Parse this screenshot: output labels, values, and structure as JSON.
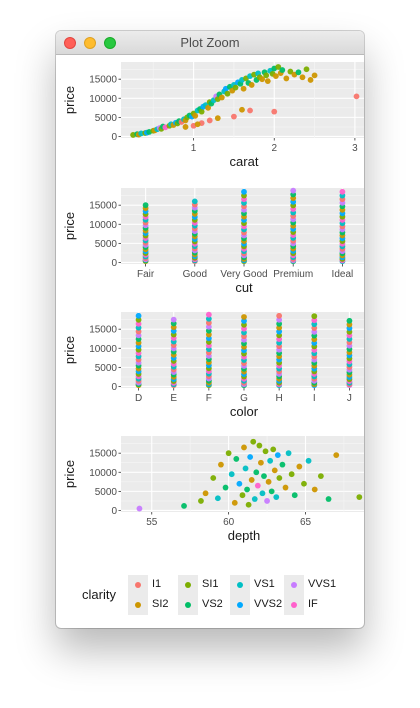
{
  "window": {
    "title": "Plot Zoom"
  },
  "legend": {
    "title": "clarity",
    "items": [
      {
        "label": "I1",
        "color": "#F8766D"
      },
      {
        "label": "SI2",
        "color": "#CD9600"
      },
      {
        "label": "SI1",
        "color": "#7CAE00"
      },
      {
        "label": "VS2",
        "color": "#00BE67"
      },
      {
        "label": "VS1",
        "color": "#00BFC4"
      },
      {
        "label": "VVS2",
        "color": "#00A9FF"
      },
      {
        "label": "VVS1",
        "color": "#C77CFF"
      },
      {
        "label": "IF",
        "color": "#FF61CC"
      }
    ]
  },
  "chart_data": [
    {
      "type": "scatter",
      "xlabel": "carat",
      "ylabel": "price",
      "xlim": [
        0.1,
        3.15
      ],
      "ylim": [
        -400,
        19500
      ],
      "xticks": [
        1,
        2,
        3
      ],
      "yticks": [
        0,
        5000,
        10000,
        15000
      ],
      "grid": true,
      "points": [
        [
          0.25,
          400,
          "SI1"
        ],
        [
          0.3,
          600,
          "VS2"
        ],
        [
          0.32,
          500,
          "SI2"
        ],
        [
          0.35,
          800,
          "VS1"
        ],
        [
          0.4,
          900,
          "SI1"
        ],
        [
          0.42,
          1000,
          "VVS2"
        ],
        [
          0.45,
          1200,
          "VS2"
        ],
        [
          0.5,
          1500,
          "SI1"
        ],
        [
          0.52,
          1600,
          "SI2"
        ],
        [
          0.55,
          1900,
          "VS1"
        ],
        [
          0.58,
          2200,
          "VVS1"
        ],
        [
          0.6,
          2000,
          "SI1"
        ],
        [
          0.62,
          2600,
          "VS2"
        ],
        [
          0.65,
          2400,
          "IF"
        ],
        [
          0.7,
          2800,
          "SI1"
        ],
        [
          0.72,
          3200,
          "VS1"
        ],
        [
          0.75,
          3000,
          "SI2"
        ],
        [
          0.78,
          3600,
          "VVS2"
        ],
        [
          0.8,
          3400,
          "SI1"
        ],
        [
          0.82,
          4000,
          "VS2"
        ],
        [
          0.85,
          3800,
          "I1"
        ],
        [
          0.88,
          4500,
          "VS1"
        ],
        [
          0.9,
          4200,
          "SI2"
        ],
        [
          0.92,
          5000,
          "SI1"
        ],
        [
          0.95,
          5500,
          "VS2"
        ],
        [
          0.98,
          5200,
          "VVS2"
        ],
        [
          1.0,
          6000,
          "SI1"
        ],
        [
          1.02,
          5400,
          "SI2"
        ],
        [
          1.05,
          6800,
          "VS1"
        ],
        [
          1.08,
          7200,
          "VS2"
        ],
        [
          1.1,
          6500,
          "SI1"
        ],
        [
          1.12,
          7800,
          "VVS2"
        ],
        [
          1.15,
          8200,
          "VS1"
        ],
        [
          1.18,
          7500,
          "SI2"
        ],
        [
          1.2,
          9000,
          "SI1"
        ],
        [
          1.22,
          8600,
          "VS2"
        ],
        [
          1.25,
          9500,
          "VS1"
        ],
        [
          1.28,
          10500,
          "VVS1"
        ],
        [
          1.3,
          9800,
          "SI1"
        ],
        [
          1.32,
          11000,
          "VS2"
        ],
        [
          1.35,
          10200,
          "SI2"
        ],
        [
          1.38,
          11800,
          "VS1"
        ],
        [
          1.4,
          12500,
          "VVS2"
        ],
        [
          1.42,
          11200,
          "SI1"
        ],
        [
          1.45,
          13000,
          "VS2"
        ],
        [
          1.48,
          12000,
          "SI2"
        ],
        [
          1.5,
          13500,
          "VS1"
        ],
        [
          1.52,
          12800,
          "SI1"
        ],
        [
          1.55,
          14200,
          "VVS2"
        ],
        [
          1.58,
          13800,
          "VS2"
        ],
        [
          1.6,
          14800,
          "VS1"
        ],
        [
          1.62,
          12500,
          "SI2"
        ],
        [
          1.65,
          15200,
          "SI1"
        ],
        [
          1.68,
          14000,
          "VS2"
        ],
        [
          1.7,
          15800,
          "VS1"
        ],
        [
          1.72,
          13500,
          "SI2"
        ],
        [
          1.75,
          16200,
          "SI1"
        ],
        [
          1.78,
          14800,
          "VS2"
        ],
        [
          1.8,
          16500,
          "VS1"
        ],
        [
          1.82,
          15500,
          "SI1"
        ],
        [
          1.85,
          15000,
          "SI2"
        ],
        [
          1.88,
          16800,
          "VS2"
        ],
        [
          1.9,
          16000,
          "SI1"
        ],
        [
          1.92,
          14500,
          "SI2"
        ],
        [
          1.95,
          17200,
          "VS1"
        ],
        [
          1.98,
          16400,
          "SI1"
        ],
        [
          2.0,
          17800,
          "VS2"
        ],
        [
          2.02,
          15800,
          "SI2"
        ],
        [
          2.05,
          18200,
          "SI1"
        ],
        [
          2.08,
          16600,
          "SI2"
        ],
        [
          2.1,
          17400,
          "VS2"
        ],
        [
          2.15,
          15200,
          "SI2"
        ],
        [
          2.2,
          17000,
          "SI1"
        ],
        [
          2.25,
          16200,
          "SI2"
        ],
        [
          2.3,
          16800,
          "VS2"
        ],
        [
          2.35,
          15500,
          "SI2"
        ],
        [
          2.4,
          17600,
          "SI1"
        ],
        [
          2.45,
          14800,
          "SI2"
        ],
        [
          2.5,
          16000,
          "SI2"
        ],
        [
          1.0,
          2800,
          "I1"
        ],
        [
          1.1,
          3500,
          "I1"
        ],
        [
          1.2,
          4200,
          "I1"
        ],
        [
          1.5,
          5200,
          "I1"
        ],
        [
          1.7,
          6800,
          "I1"
        ],
        [
          2.0,
          6500,
          "I1"
        ],
        [
          0.9,
          2500,
          "SI2"
        ],
        [
          1.05,
          3200,
          "SI2"
        ],
        [
          1.3,
          4800,
          "SI2"
        ],
        [
          1.6,
          7000,
          "SI2"
        ],
        [
          3.02,
          10500,
          "I1"
        ]
      ]
    },
    {
      "type": "scatter",
      "xlabel": "cut",
      "ylabel": "price",
      "categories": [
        "Fair",
        "Good",
        "Very Good",
        "Premium",
        "Ideal"
      ],
      "ylim": [
        -400,
        19500
      ],
      "yticks": [
        0,
        5000,
        10000,
        15000
      ],
      "grid": true,
      "column_max": [
        15000,
        16000,
        18500,
        18800,
        18500
      ],
      "points_per_column": 26
    },
    {
      "type": "scatter",
      "xlabel": "color",
      "ylabel": "price",
      "categories": [
        "D",
        "E",
        "F",
        "G",
        "H",
        "I",
        "J"
      ],
      "ylim": [
        -400,
        19500
      ],
      "yticks": [
        0,
        5000,
        10000,
        15000
      ],
      "grid": true,
      "column_max": [
        18500,
        17500,
        18800,
        18200,
        18500,
        18400,
        17200
      ],
      "points_per_column": 24
    },
    {
      "type": "scatter",
      "xlabel": "depth",
      "ylabel": "price",
      "xlim": [
        53,
        69
      ],
      "ylim": [
        -400,
        19500
      ],
      "xticks": [
        55,
        60,
        65
      ],
      "yticks": [
        0,
        5000,
        10000,
        15000
      ],
      "grid": true,
      "points": [
        [
          54.2,
          500,
          "VVS1"
        ],
        [
          57.1,
          1200,
          "VS2"
        ],
        [
          58.2,
          2500,
          "SI1"
        ],
        [
          58.5,
          4500,
          "SI2"
        ],
        [
          59.0,
          8500,
          "SI1"
        ],
        [
          59.3,
          3200,
          "VS1"
        ],
        [
          59.5,
          12000,
          "SI2"
        ],
        [
          59.8,
          6000,
          "VS2"
        ],
        [
          60.0,
          15000,
          "SI1"
        ],
        [
          60.2,
          9500,
          "VS1"
        ],
        [
          60.4,
          2000,
          "SI2"
        ],
        [
          60.5,
          13500,
          "VS2"
        ],
        [
          60.7,
          7000,
          "VVS2"
        ],
        [
          60.9,
          4000,
          "SI1"
        ],
        [
          61.0,
          16500,
          "SI2"
        ],
        [
          61.1,
          11000,
          "VS1"
        ],
        [
          61.2,
          5500,
          "VS2"
        ],
        [
          61.3,
          1500,
          "SI1"
        ],
        [
          61.4,
          14000,
          "VVS2"
        ],
        [
          61.5,
          8000,
          "SI2"
        ],
        [
          61.6,
          18000,
          "SI1"
        ],
        [
          61.7,
          3000,
          "VS1"
        ],
        [
          61.8,
          10000,
          "VS2"
        ],
        [
          61.9,
          6500,
          "IF"
        ],
        [
          62.0,
          17000,
          "SI1"
        ],
        [
          62.1,
          12500,
          "SI2"
        ],
        [
          62.2,
          4500,
          "VS1"
        ],
        [
          62.3,
          9000,
          "VS2"
        ],
        [
          62.4,
          15500,
          "SI1"
        ],
        [
          62.5,
          2500,
          "VVS1"
        ],
        [
          62.6,
          7500,
          "SI2"
        ],
        [
          62.7,
          13000,
          "VS1"
        ],
        [
          62.8,
          5000,
          "VS2"
        ],
        [
          62.9,
          16000,
          "SI1"
        ],
        [
          63.0,
          10500,
          "SI2"
        ],
        [
          63.1,
          3500,
          "VS1"
        ],
        [
          63.2,
          14500,
          "VVS2"
        ],
        [
          63.3,
          8500,
          "SI1"
        ],
        [
          63.5,
          12000,
          "VS2"
        ],
        [
          63.7,
          6000,
          "SI2"
        ],
        [
          63.9,
          15000,
          "VS1"
        ],
        [
          64.1,
          9500,
          "SI1"
        ],
        [
          64.3,
          4000,
          "VS2"
        ],
        [
          64.6,
          11500,
          "SI2"
        ],
        [
          64.9,
          7000,
          "SI1"
        ],
        [
          65.2,
          13000,
          "VS1"
        ],
        [
          65.6,
          5500,
          "SI2"
        ],
        [
          66.0,
          9000,
          "SI1"
        ],
        [
          66.5,
          3000,
          "VS2"
        ],
        [
          67.0,
          14500,
          "SI2"
        ],
        [
          68.5,
          3500,
          "SI1"
        ]
      ]
    }
  ]
}
